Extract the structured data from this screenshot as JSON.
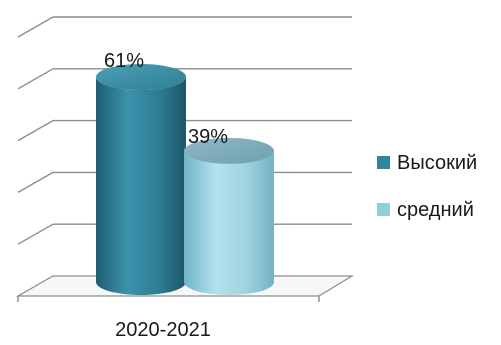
{
  "chart_data": {
    "type": "bar",
    "categories": [
      "2020-2021"
    ],
    "series": [
      {
        "name": "Высокий",
        "values": [
          61
        ],
        "label": "61%",
        "color": "#31859c"
      },
      {
        "name": "средний",
        "values": [
          39
        ],
        "label": "39%",
        "color": "#92cddc"
      }
    ],
    "ylim": [
      0,
      100
    ],
    "grid": true,
    "legend_position": "right",
    "style": "3d-cylinder"
  }
}
